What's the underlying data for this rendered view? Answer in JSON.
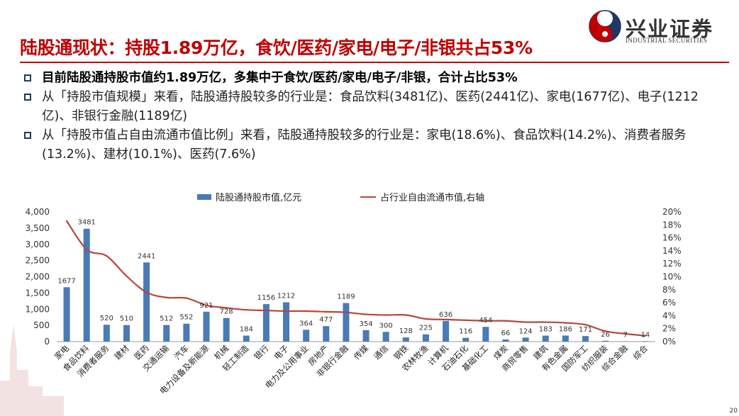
{
  "header": {
    "title": "陆股通现状：持股1.89万亿，食饮/医药/家电/电子/非银共占53%",
    "brand_name": "兴业证券",
    "brand_en": "INDUSTRIAL SECURITIES",
    "page_number": "20"
  },
  "bullets": [
    {
      "text": "目前陆股通持股市值约1.89万亿，多集中于食饮/医药/家电/电子/非银，合计占比53%",
      "bold": true
    },
    {
      "text": "从「持股市值规模」来看，陆股通持股较多的行业是：食品饮料(3481亿)、医药(2441亿)、家电(1677亿)、电子(1212亿)、非银行金融(1189亿)",
      "bold": false
    },
    {
      "text": "从「持股市值占自由流通市值比例」来看，陆股通持股较多的行业是：家电(18.6%)、食品饮料(14.2%)、消费者服务(13.2%)、建材(10.1%)、医药(7.6%)",
      "bold": false
    }
  ],
  "colors": {
    "title_red": "#c00000",
    "bar_blue": "#4a7ab7",
    "line_red": "#b5473b",
    "bullet_box": "#1f3864"
  },
  "chart_data": {
    "type": "bar+line",
    "legend_position": "top-center",
    "grid": false,
    "categories": [
      "家电",
      "食品饮料",
      "消费者服务",
      "建材",
      "医药",
      "交通运输",
      "汽车",
      "电力设备及新能源",
      "机械",
      "轻工制造",
      "银行",
      "电子",
      "电力及公用事业",
      "房地产",
      "非银行金融",
      "传媒",
      "通信",
      "钢铁",
      "农林牧渔",
      "计算机",
      "石油石化",
      "基础化工",
      "煤炭",
      "商贸零售",
      "建筑",
      "有色金属",
      "国防军工",
      "纺织服装",
      "综合金融",
      "综合"
    ],
    "series": [
      {
        "name": "陆股通持股市值,亿元",
        "type": "bar",
        "axis": "left",
        "values": [
          1677,
          3481,
          520,
          510,
          2441,
          512,
          552,
          921,
          728,
          184,
          1156,
          1212,
          364,
          477,
          1189,
          354,
          300,
          128,
          225,
          636,
          116,
          454,
          66,
          124,
          183,
          186,
          171,
          26,
          7,
          14
        ]
      },
      {
        "name": "占行业自由流通市值,右轴",
        "type": "line",
        "axis": "right",
        "values": [
          18.6,
          14.2,
          13.2,
          10.1,
          7.6,
          6.8,
          6.7,
          5.6,
          5.2,
          4.9,
          4.8,
          4.7,
          4.7,
          4.6,
          4.5,
          4.2,
          4.1,
          4.1,
          3.5,
          3.4,
          3.3,
          3.2,
          3.2,
          3.0,
          3.0,
          2.9,
          2.6,
          1.6,
          1.2,
          0.9
        ]
      }
    ],
    "y_left": {
      "min": 0,
      "max": 4000,
      "ticks": [
        "0",
        "500",
        "1,000",
        "1,500",
        "2,000",
        "2,500",
        "3,000",
        "3,500",
        "4,000"
      ]
    },
    "y_right": {
      "min": 0,
      "max": 20,
      "ticks": [
        "0%",
        "2%",
        "4%",
        "6%",
        "8%",
        "10%",
        "12%",
        "14%",
        "16%",
        "18%",
        "20%"
      ]
    }
  }
}
